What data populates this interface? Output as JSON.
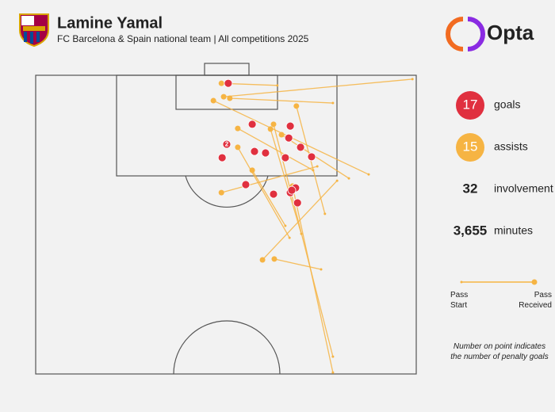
{
  "header": {
    "title": "Lamine Yamal",
    "subtitle": "FC Barcelona & Spain national team | All competitions 2025",
    "brand": "Opta"
  },
  "chart_data": {
    "type": "pitch",
    "xlim": [
      0,
      100
    ],
    "ylim": [
      0,
      100
    ],
    "goals": {
      "name": "goals",
      "color": "#e0303f",
      "x": [
        50.6,
        56.9,
        66.9,
        50.2,
        66.5,
        69.6,
        57.5,
        60.4,
        49.0,
        65.6,
        72.5,
        55.2,
        62.5,
        66.9,
        68.3,
        68.8,
        67.3
      ],
      "y": [
        2.7,
        16.4,
        17.0,
        23.1,
        21.0,
        24.1,
        25.5,
        26.0,
        27.6,
        27.6,
        27.3,
        36.6,
        39.8,
        39.3,
        37.7,
        42.7,
        38.5
      ],
      "penalties": [
        null,
        null,
        null,
        2,
        null,
        null,
        null,
        null,
        null,
        null,
        null,
        null,
        null,
        null,
        null,
        null,
        null
      ]
    },
    "assists": {
      "name": "assists",
      "color": "#f6b443",
      "start_x": [
        63.5,
        87.5,
        99.0,
        78.1,
        76.0,
        72.9,
        78.1,
        69.8,
        82.3,
        66.7,
        65.6,
        74.0,
        78.1,
        79.2,
        75.0
      ],
      "start_y": [
        3.4,
        33.2,
        1.3,
        9.3,
        46.4,
        31.8,
        94.2,
        53.1,
        34.5,
        54.4,
        50.4,
        30.5,
        99.5,
        35.3,
        65.0
      ],
      "end_x": [
        48.8,
        46.7,
        49.4,
        51.0,
        68.5,
        53.1,
        62.5,
        61.7,
        64.6,
        53.1,
        56.9,
        48.8,
        67.5,
        59.6,
        62.7
      ],
      "end_y": [
        2.7,
        8.5,
        7.2,
        7.7,
        10.3,
        17.8,
        16.4,
        18.0,
        19.9,
        24.1,
        31.8,
        39.3,
        37.1,
        61.8,
        61.5
      ]
    }
  },
  "stats": [
    {
      "value": 17,
      "label": "goals"
    },
    {
      "value": 15,
      "label": "assists"
    },
    {
      "value": 32,
      "label": "involvement"
    },
    {
      "value": {
        "value": 3655,
        "label": "3,655"
      },
      "label": "minutes"
    }
  ],
  "legend": {
    "start": "Pass\nStart",
    "end": "Pass\nReceived"
  },
  "note": "Number on point indicates\nthe number of penalty goals"
}
